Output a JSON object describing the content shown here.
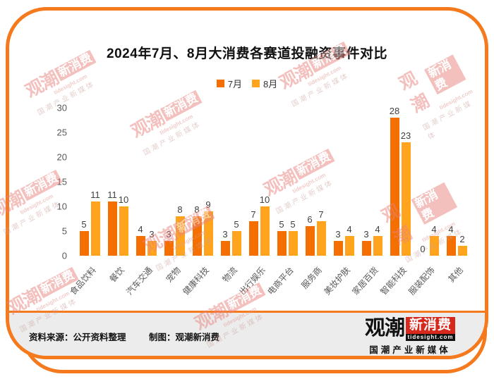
{
  "title": "2024年7月、8月大消费各赛道投融资事件对比",
  "chart_data": {
    "type": "bar",
    "title": "2024年7月、8月大消费各赛道投融资事件对比",
    "categories": [
      "食品饮料",
      "餐饮",
      "汽车交通",
      "宠物",
      "健康科技",
      "物流",
      "出行娱乐",
      "电商平台",
      "服务商",
      "美妆护肤",
      "家居百货",
      "智能科技",
      "服装配饰",
      "其他"
    ],
    "series": [
      {
        "name": "7月",
        "color": "#F56E00",
        "values": [
          5,
          11,
          4,
          3,
          8,
          3,
          7,
          5,
          6,
          3,
          3,
          28,
          0,
          4
        ]
      },
      {
        "name": "8月",
        "color": "#FFA41C",
        "values": [
          11,
          10,
          3,
          8,
          9,
          5,
          10,
          5,
          7,
          4,
          4,
          23,
          4,
          2
        ]
      }
    ],
    "xlabel": "",
    "ylabel": "",
    "ylim": [
      0,
      30
    ],
    "yticks": [
      0,
      5,
      10,
      15,
      20,
      25,
      30
    ],
    "grid": false,
    "legend_position": "top",
    "bar_value_labels": true
  },
  "footer": {
    "source": "资料来源：公开资料整理",
    "credit": "制图：观潮新消费"
  },
  "logo": {
    "part1": "观潮",
    "part2": "新消费",
    "domain": "tidesight.com",
    "tagline": "国潮产业新媒体"
  },
  "watermark": {
    "part1": "观潮",
    "part2": "新消费",
    "domain": "tidesight.com",
    "tagline": "国潮产业新媒体"
  },
  "colors": {
    "frame": "#F5791D",
    "bar_jul": "#F56E00",
    "bar_aug": "#FFA41C",
    "footer_bg": "#ECECEC",
    "logo_red": "#D7281E",
    "watermark_red": "#E8837E"
  }
}
